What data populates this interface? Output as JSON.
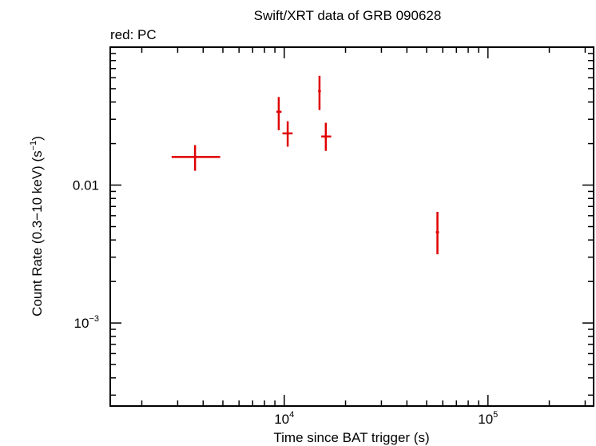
{
  "chart_data": {
    "type": "scatter",
    "title": "Swift/XRT data of GRB 090628",
    "subtitle": "red: PC",
    "xlabel": "Time since BAT trigger (s)",
    "ylabel_main": "Count Rate (0.3−10 keV) (s",
    "ylabel_sup": "−1",
    "ylabel_close": ")",
    "x_scale": "log",
    "y_scale": "log",
    "xlim": [
      1400,
      330000
    ],
    "ylim": [
      0.00025,
      0.1
    ],
    "x_tick_labels": [
      {
        "value": 10000,
        "base": "10",
        "exp": "4"
      },
      {
        "value": 100000,
        "base": "10",
        "exp": "5"
      }
    ],
    "y_tick_labels": [
      {
        "value": 0.01,
        "text": "0.01",
        "base": "",
        "exp": ""
      },
      {
        "value": 0.001,
        "text": "",
        "base": "10",
        "exp": "−3"
      }
    ],
    "grid": false,
    "series": [
      {
        "color": "#e00000",
        "points": [
          {
            "x": 3650,
            "y": 0.016,
            "xlo": 2800,
            "xhi": 4850,
            "ylo": 0.0127,
            "yhi": 0.0195
          },
          {
            "x": 9400,
            "y": 0.034,
            "xlo": 9150,
            "xhi": 9700,
            "ylo": 0.025,
            "yhi": 0.0435
          },
          {
            "x": 10400,
            "y": 0.0237,
            "xlo": 9800,
            "xhi": 11000,
            "ylo": 0.019,
            "yhi": 0.029
          },
          {
            "x": 14900,
            "y": 0.048,
            "xlo": 14700,
            "xhi": 15100,
            "ylo": 0.035,
            "yhi": 0.062
          },
          {
            "x": 16000,
            "y": 0.0225,
            "xlo": 15200,
            "xhi": 17000,
            "ylo": 0.0177,
            "yhi": 0.0283
          },
          {
            "x": 56500,
            "y": 0.00455,
            "xlo": 55500,
            "xhi": 57500,
            "ylo": 0.00315,
            "yhi": 0.0064
          }
        ]
      }
    ]
  }
}
